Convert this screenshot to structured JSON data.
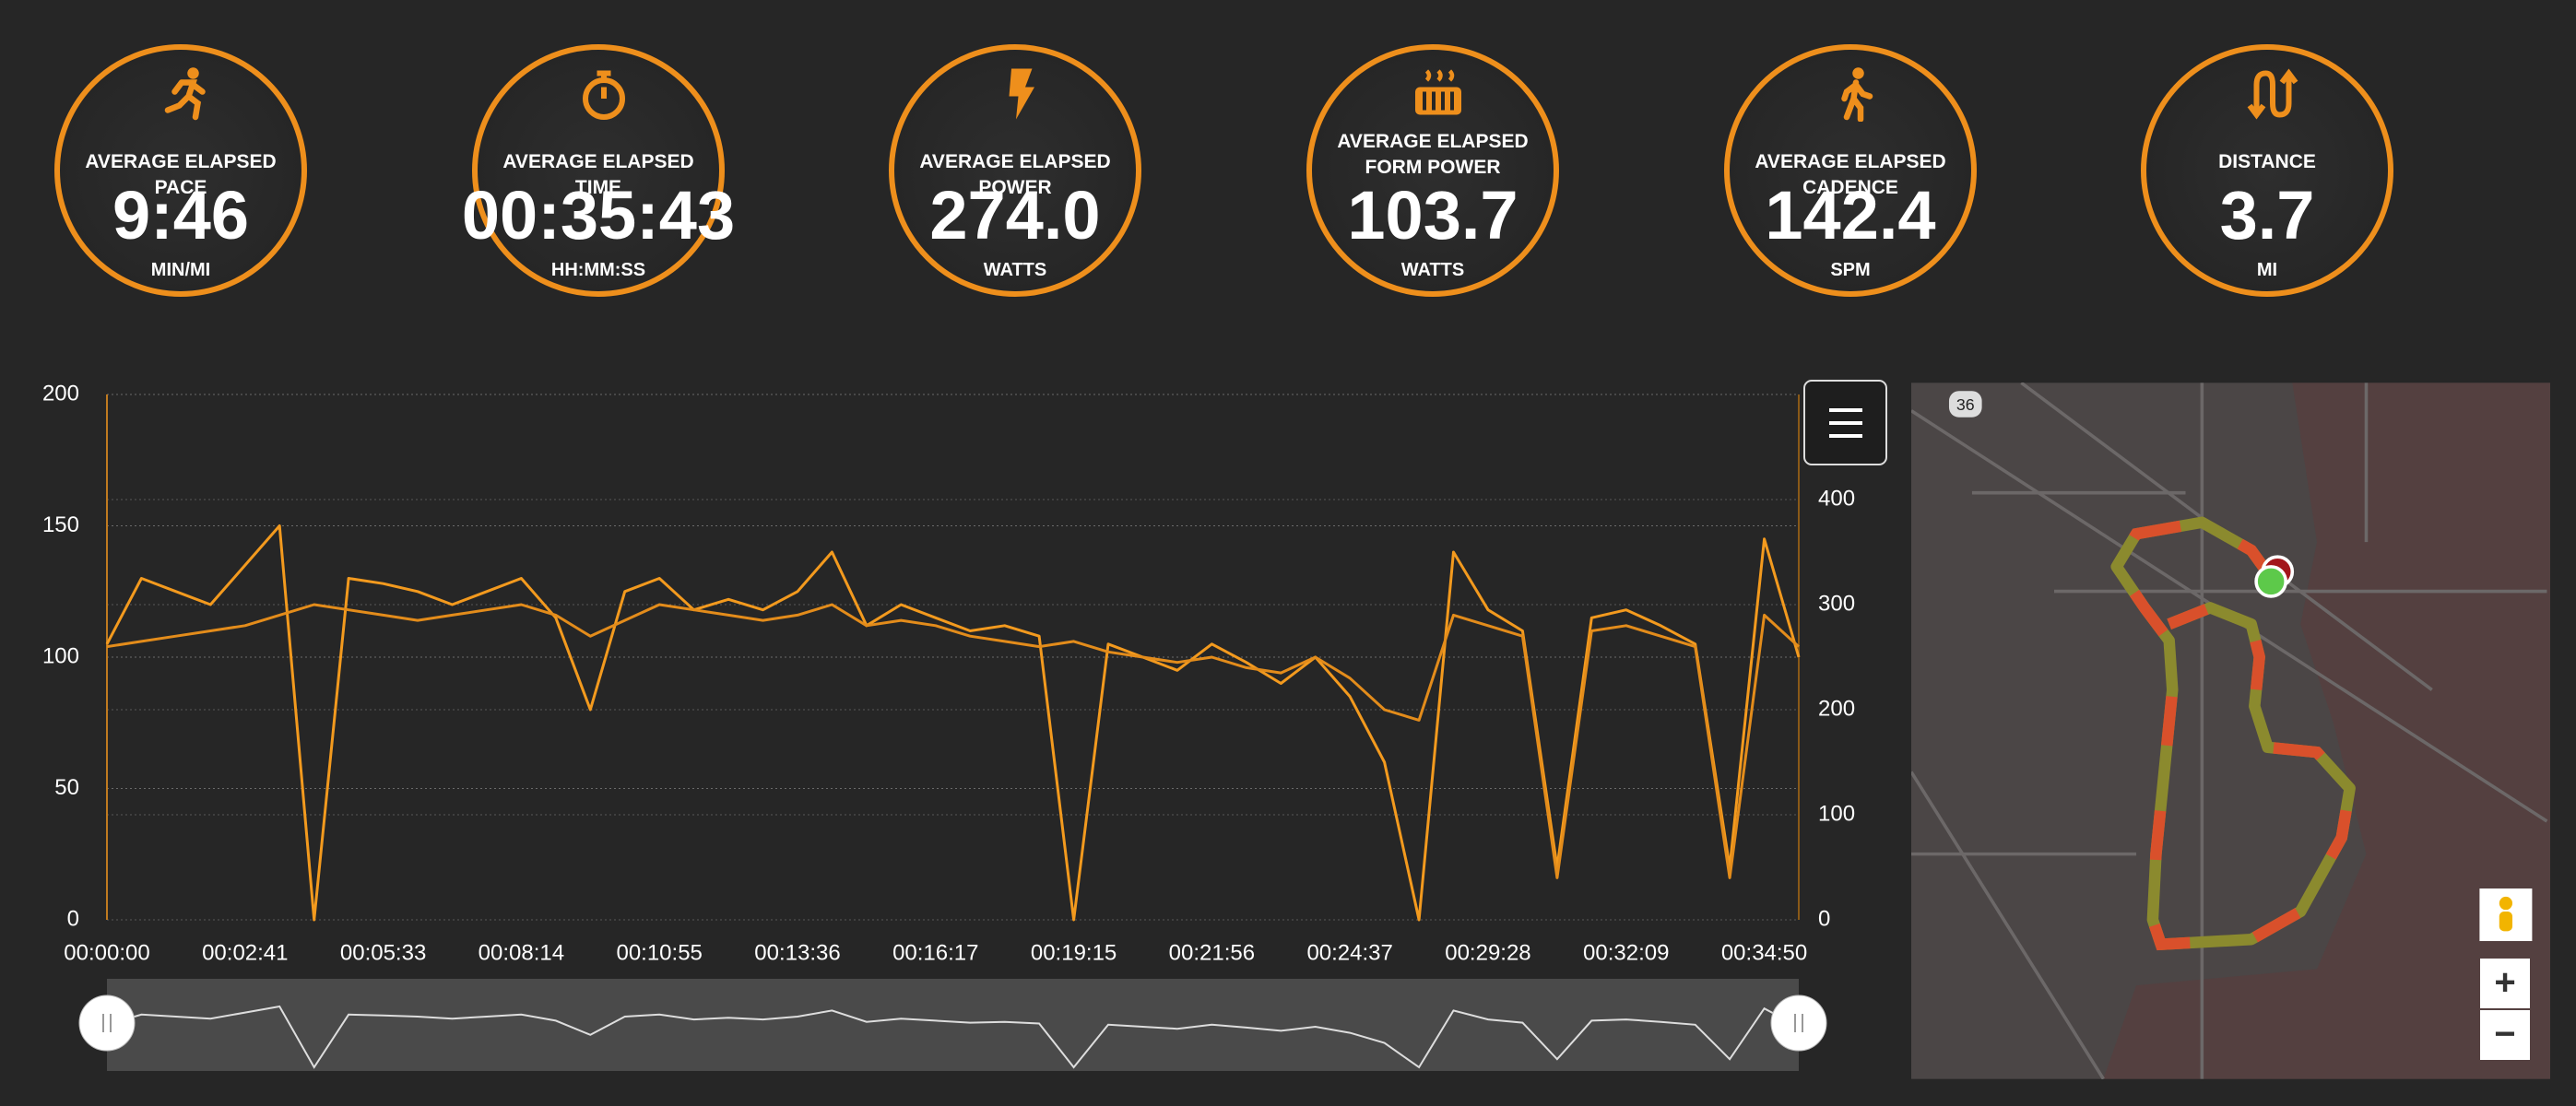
{
  "stats": [
    {
      "label": "AVERAGE ELAPSED PACE",
      "value": "9:46",
      "unit": "MIN/MI"
    },
    {
      "label": "AVERAGE ELAPSED TIME",
      "value": "00:35:43",
      "unit": "HH:MM:SS"
    },
    {
      "label": "AVERAGE ELAPSED POWER",
      "value": "274.0",
      "unit": "WATTS"
    },
    {
      "label": "AVERAGE ELAPSED FORM POWER",
      "value": "103.7",
      "unit": "WATTS"
    },
    {
      "label": "AVERAGE ELAPSED CADENCE",
      "value": "142.4",
      "unit": "SPM"
    },
    {
      "label": "DISTANCE",
      "value": "3.7",
      "unit": "MI"
    }
  ],
  "chart_data": {
    "type": "line",
    "categories": [
      "00:00:00",
      null,
      null,
      null,
      "00:02:41",
      null,
      null,
      null,
      "00:05:33",
      null,
      null,
      null,
      "00:08:14",
      null,
      null,
      null,
      "00:10:55",
      null,
      null,
      null,
      "00:13:36",
      null,
      null,
      null,
      "00:16:17",
      null,
      null,
      null,
      "00:19:15",
      null,
      null,
      null,
      "00:21:56",
      null,
      null,
      null,
      "00:24:37",
      null,
      null,
      null,
      "00:29:28",
      null,
      null,
      null,
      "00:32:09",
      null,
      null,
      null,
      "00:34:50",
      null
    ],
    "series": [
      {
        "color": "#f39a1e",
        "values": [
          105,
          130,
          125,
          120,
          135,
          150,
          0,
          130,
          128,
          125,
          120,
          125,
          130,
          115,
          80,
          125,
          130,
          118,
          122,
          118,
          125,
          140,
          112,
          120,
          115,
          110,
          112,
          108,
          0,
          105,
          100,
          95,
          105,
          98,
          90,
          100,
          85,
          60,
          0,
          140,
          118,
          110,
          20,
          115,
          118,
          112,
          105,
          20,
          145,
          100
        ]
      },
      {
        "color": "#e38c1b",
        "axis": "y2",
        "values": [
          260,
          265,
          270,
          275,
          280,
          290,
          300,
          295,
          290,
          285,
          290,
          295,
          300,
          290,
          270,
          285,
          300,
          295,
          290,
          285,
          290,
          300,
          280,
          285,
          280,
          270,
          265,
          260,
          265,
          255,
          250,
          245,
          250,
          240,
          235,
          250,
          230,
          200,
          190,
          290,
          280,
          270,
          40,
          275,
          280,
          270,
          260,
          40,
          290,
          260
        ]
      }
    ],
    "ylim": [
      0,
      200
    ],
    "yticks": [
      0,
      50,
      100,
      150,
      200
    ],
    "y2lim": [
      0,
      500
    ],
    "y2ticks": [
      0,
      100,
      200,
      300,
      400
    ],
    "grid": true
  },
  "map": {
    "shield": "36",
    "zoom_in": "+",
    "zoom_out": "−"
  }
}
